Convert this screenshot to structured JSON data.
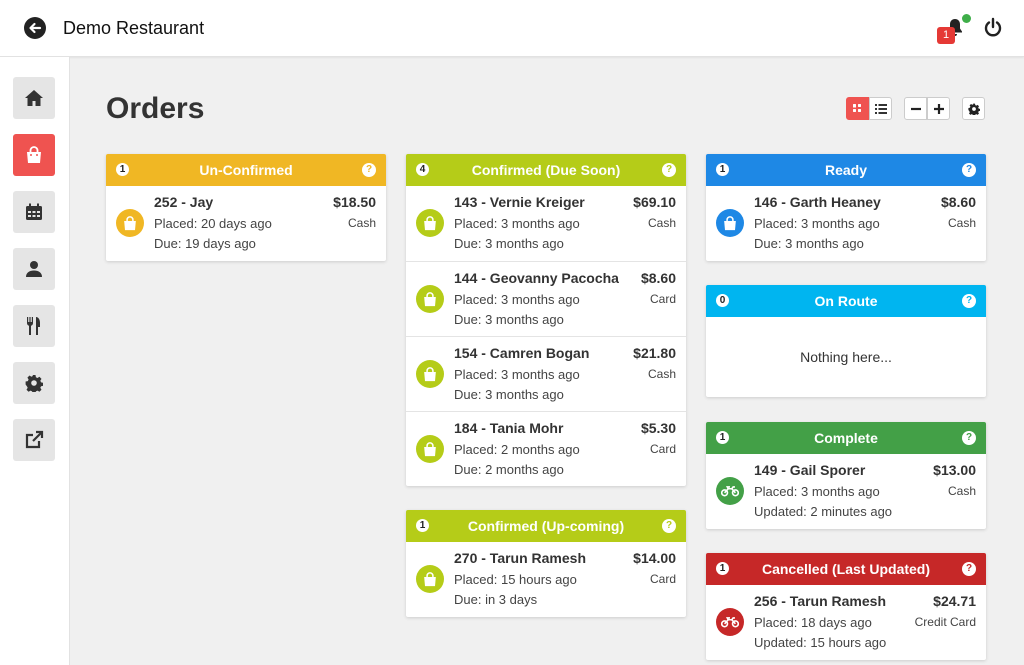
{
  "app": {
    "title": "Demo Restaurant",
    "notification_count": "1"
  },
  "page": {
    "title": "Orders"
  },
  "colors": {
    "accent": "#ef5350",
    "unconfirmed": "#f0b724",
    "confirmed": "#b5cc18",
    "ready": "#1e88e5",
    "on_route": "#00b5f0",
    "complete": "#43a047",
    "cancelled": "#c62828"
  },
  "sidebar": {
    "items": [
      {
        "icon": "home-icon"
      },
      {
        "icon": "shopping-bag-icon",
        "active": true
      },
      {
        "icon": "calendar-icon"
      },
      {
        "icon": "user-icon"
      },
      {
        "icon": "utensils-icon"
      },
      {
        "icon": "gear-icon"
      },
      {
        "icon": "external-link-icon"
      }
    ]
  },
  "panels": {
    "unconfirmed": {
      "title": "Un-Confirmed",
      "count": "1",
      "orders": [
        {
          "name": "252 - Jay",
          "placed": "Placed: 20 days ago",
          "due": "Due: 19 days ago",
          "price": "$18.50",
          "payment": "Cash"
        }
      ]
    },
    "confirmed_due": {
      "title": "Confirmed (Due Soon)",
      "count": "4",
      "orders": [
        {
          "name": "143 - Vernie Kreiger",
          "placed": "Placed: 3 months ago",
          "due": "Due: 3 months ago",
          "price": "$69.10",
          "payment": "Cash"
        },
        {
          "name": "144 - Geovanny Pacocha",
          "placed": "Placed: 3 months ago",
          "due": "Due: 3 months ago",
          "price": "$8.60",
          "payment": "Card"
        },
        {
          "name": "154 - Camren Bogan",
          "placed": "Placed: 3 months ago",
          "due": "Due: 3 months ago",
          "price": "$21.80",
          "payment": "Cash"
        },
        {
          "name": "184 - Tania Mohr",
          "placed": "Placed: 2 months ago",
          "due": "Due: 2 months ago",
          "price": "$5.30",
          "payment": "Card"
        }
      ]
    },
    "confirmed_upcoming": {
      "title": "Confirmed (Up-coming)",
      "count": "1",
      "orders": [
        {
          "name": "270 - Tarun Ramesh",
          "placed": "Placed: 15 hours ago",
          "due": "Due: in 3 days",
          "price": "$14.00",
          "payment": "Card"
        }
      ]
    },
    "ready": {
      "title": "Ready",
      "count": "1",
      "orders": [
        {
          "name": "146 - Garth Heaney",
          "placed": "Placed: 3 months ago",
          "due": "Due: 3 months ago",
          "price": "$8.60",
          "payment": "Cash"
        }
      ]
    },
    "on_route": {
      "title": "On Route",
      "count": "0",
      "empty_text": "Nothing here..."
    },
    "complete": {
      "title": "Complete",
      "count": "1",
      "orders": [
        {
          "name": "149 - Gail Sporer",
          "placed": "Placed: 3 months ago",
          "due": "Updated: 2 minutes ago",
          "price": "$13.00",
          "payment": "Cash"
        }
      ]
    },
    "cancelled": {
      "title": "Cancelled (Last Updated)",
      "count": "1",
      "orders": [
        {
          "name": "256 - Tarun Ramesh",
          "placed": "Placed: 18 days ago",
          "due": "Updated: 15 hours ago",
          "price": "$24.71",
          "payment": "Credit Card"
        }
      ]
    }
  }
}
